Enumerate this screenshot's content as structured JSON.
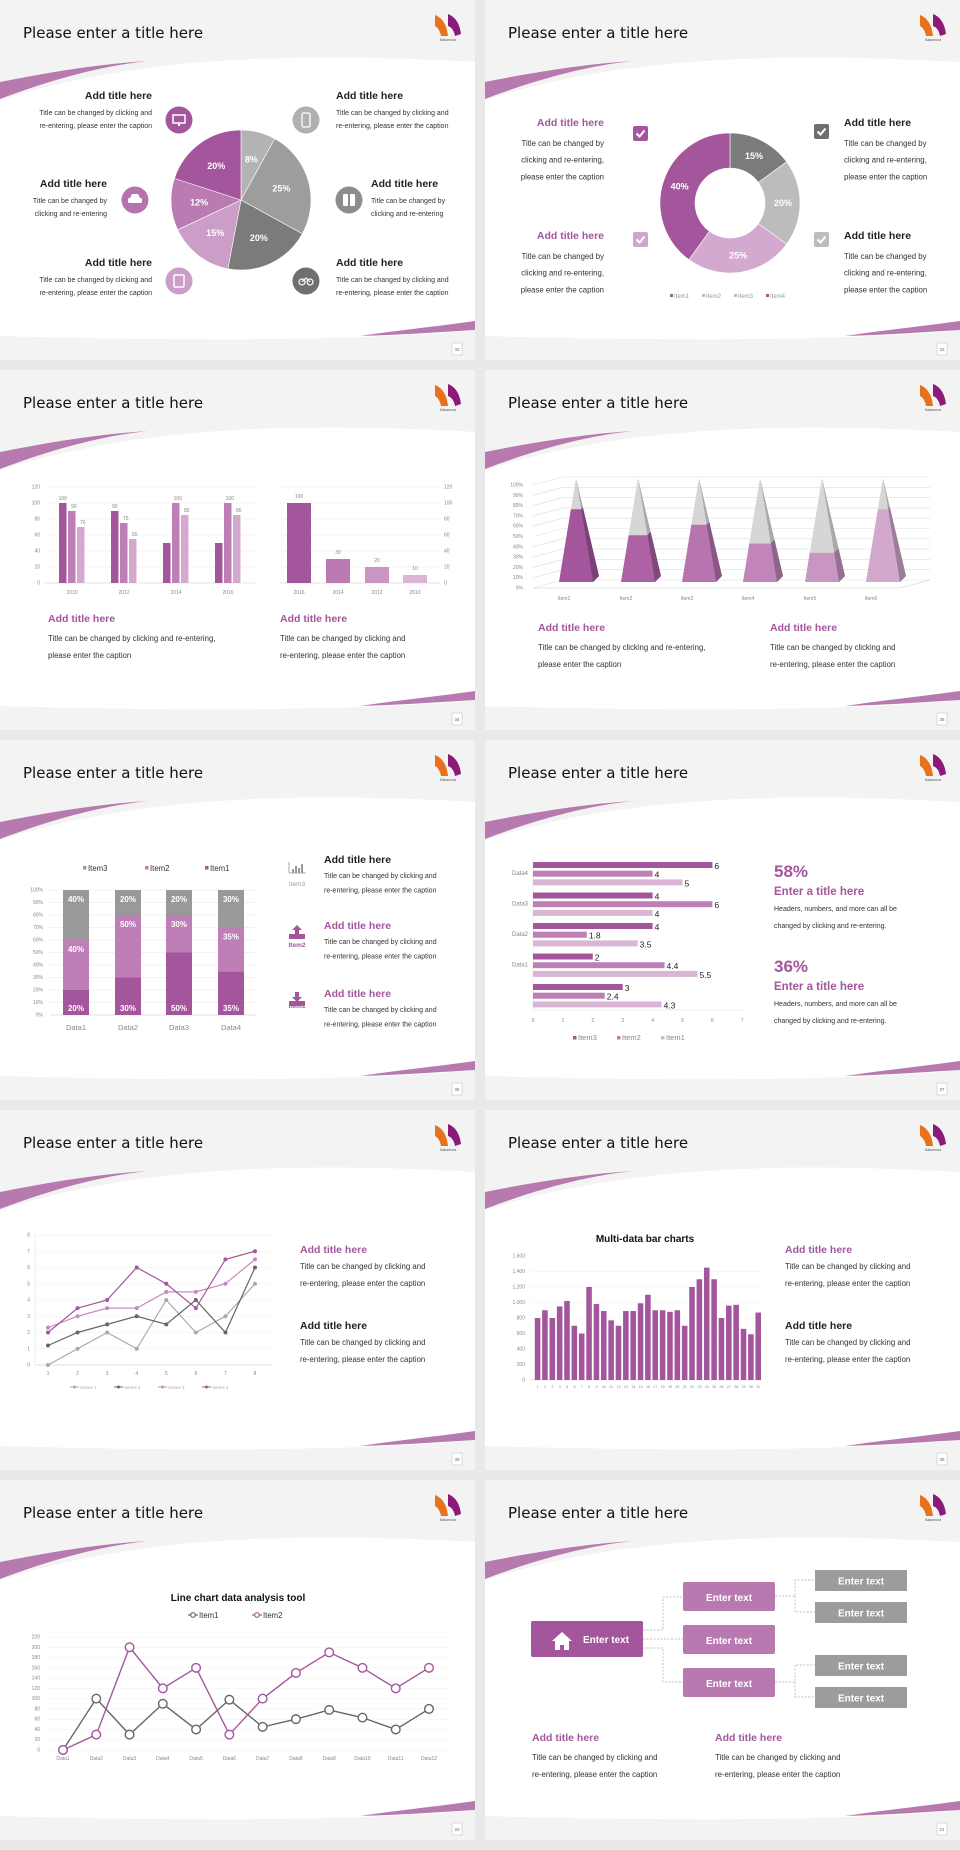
{
  "colors": {
    "accent": "#a4569c",
    "accent_mid": "#bd7fb6",
    "accent_light": "#d4a9cf",
    "gray_dark": "#777777",
    "gray": "#9d9d9d",
    "gray_light": "#b8b8b8",
    "logo_orange": "#e8711c",
    "logo_purple": "#8b1a78"
  },
  "logo_text": "Nakamura",
  "slides": [
    {
      "title": "Please enter a title here",
      "page": "32",
      "icons": [
        "monitor-icon",
        "smartphone-icon",
        "car-icon",
        "binoculars-icon",
        "book-icon",
        "bicycle-icon"
      ],
      "blocks": [
        {
          "title": "Add title here",
          "lines": [
            "Title can be changed by clicking and",
            "re-entering, please enter the caption"
          ]
        },
        {
          "title": "Add title here",
          "lines": [
            "Title can be changed by",
            "clicking and re-entering"
          ]
        },
        {
          "title": "Add title here",
          "lines": [
            "Title can be changed by clicking and",
            "re-entering, please enter the caption"
          ]
        },
        {
          "title": "Add title here",
          "lines": [
            "Title can be changed by clicking and",
            "re-entering, please enter the caption"
          ]
        },
        {
          "title": "Add title here",
          "lines": [
            "Title can be changed by",
            "clicking and re-entering"
          ]
        },
        {
          "title": "Add title here",
          "lines": [
            "Title can be changed by clicking and",
            "re-entering, please enter the caption"
          ]
        }
      ]
    },
    {
      "title": "Please enter a title here",
      "page": "33",
      "icons": [
        "checkbox-checked-icon",
        "checkbox-checked-icon",
        "checkbox-checked-icon",
        "checkbox-checked-icon"
      ],
      "blocks": [
        {
          "title": "Add title here",
          "lines": [
            "Title can be changed by",
            "clicking and re-entering,",
            "please enter the caption"
          ]
        },
        {
          "title": "Add title here",
          "lines": [
            "Title can be changed by",
            "clicking and re-entering,",
            "please enter the caption"
          ]
        },
        {
          "title": "Add title here",
          "lines": [
            "Title can be changed by",
            "clicking and re-entering,",
            "please enter the caption"
          ]
        },
        {
          "title": "Add title here",
          "lines": [
            "Title can be changed by",
            "clicking and re-entering,",
            "please enter the caption"
          ]
        }
      ]
    },
    {
      "title": "Please enter a title here",
      "page": "34",
      "blocks": [
        {
          "title": "Add title here",
          "lines": [
            "Title can be changed by clicking and re-entering,",
            "please enter the caption"
          ]
        },
        {
          "title": "Add title here",
          "lines": [
            "Title can be changed by clicking and",
            "re-entering, please enter the caption"
          ]
        }
      ]
    },
    {
      "title": "Please enter a title here",
      "page": "35",
      "blocks": [
        {
          "title": "Add title here",
          "lines": [
            "Title can be changed by clicking and re-entering,",
            "please enter the caption"
          ]
        },
        {
          "title": "Add title here",
          "lines": [
            "Title can be changed by clicking and",
            "re-entering, please enter the caption"
          ]
        }
      ]
    },
    {
      "title": "Please enter a title here",
      "page": "36",
      "icon_labels": [
        "Item3",
        "Item2",
        "Item1"
      ],
      "icons": [
        "bar-chart-icon",
        "upload-icon",
        "download-icon"
      ],
      "blocks": [
        {
          "title": "Add title here",
          "lines": [
            "Title can be changed by clicking and",
            "re-entering, please enter the caption"
          ]
        },
        {
          "title": "Add title here",
          "lines": [
            "Title can be changed by clicking and",
            "re-entering, please enter the caption"
          ]
        },
        {
          "title": "Add title here",
          "lines": [
            "Title can be changed by clicking and",
            "re-entering, please enter the caption"
          ]
        }
      ]
    },
    {
      "title": "Please enter a title here",
      "page": "37",
      "stats": [
        {
          "value": "58%",
          "title": "Enter a title here",
          "lines": [
            "Headers, numbers, and more can all be",
            "changed by clicking and re-entering."
          ]
        },
        {
          "value": "36%",
          "title": "Enter a title here",
          "lines": [
            "Headers, numbers, and more can all be",
            "changed by clicking and re-entering."
          ]
        }
      ]
    },
    {
      "title": "Please enter a title here",
      "page": "38",
      "blocks": [
        {
          "title": "Add title here",
          "lines": [
            "Title can be changed by clicking and",
            "re-entering, please enter the caption"
          ]
        },
        {
          "title": "Add title here",
          "lines": [
            "Title can be changed by clicking and",
            "re-entering, please enter the caption"
          ]
        }
      ]
    },
    {
      "title": "Please enter a title here",
      "page": "39",
      "blocks": [
        {
          "title": "Add title here",
          "lines": [
            "Title can be changed by clicking and",
            "re-entering, please enter the caption"
          ]
        },
        {
          "title": "Add title here",
          "lines": [
            "Title can be changed by clicking and",
            "re-entering, please enter the caption"
          ]
        }
      ]
    },
    {
      "title": "Please enter a title here",
      "page": "20"
    },
    {
      "title": "Please enter a title here",
      "page": "21",
      "tree": {
        "root": "Enter text",
        "root_icon": "home-icon",
        "level1": [
          "Enter text",
          "Enter text",
          "Enter text"
        ],
        "level2": [
          "Enter text",
          "Enter text",
          "Enter text",
          "Enter text"
        ]
      },
      "blocks": [
        {
          "title": "Add title here",
          "lines": [
            "Title can be changed by clicking and",
            "re-entering, please enter the caption"
          ]
        },
        {
          "title": "Add title here",
          "lines": [
            "Title can be changed by clicking and",
            "re-entering, please enter the caption"
          ]
        }
      ]
    }
  ],
  "chart_data": [
    {
      "type": "pie",
      "values": [
        8,
        25,
        20,
        15,
        12,
        20
      ],
      "labels": [
        "8%",
        "25%",
        "20%",
        "15%",
        "12%",
        "20%"
      ],
      "colors": [
        "#b3b3b3",
        "#9d9d9d",
        "#7b7b7b",
        "#cc9dc6",
        "#b97bb1",
        "#a4569c"
      ]
    },
    {
      "type": "pie",
      "donut": true,
      "categories": [
        "Item1",
        "Item2",
        "Item3",
        "Item4"
      ],
      "values": [
        15,
        20,
        25,
        40
      ],
      "labels": [
        "15%",
        "20%",
        "25%",
        "40%"
      ],
      "colors": [
        "#7b7b7b",
        "#bcbcbc",
        "#d4a9cf",
        "#a4569c"
      ],
      "legend": "bottom"
    },
    {
      "type": "bar",
      "categories": [
        "2010",
        "2012",
        "2014",
        "2016"
      ],
      "series": [
        {
          "values": [
            100,
            90,
            50,
            50
          ],
          "labels": [
            "100",
            "90",
            "",
            ""
          ]
        },
        {
          "values": [
            90,
            75,
            100,
            100
          ],
          "labels": [
            "90",
            "75",
            "100",
            "100"
          ]
        },
        {
          "values": [
            70,
            55,
            85,
            85
          ],
          "labels": [
            "70",
            "55",
            "85",
            "85"
          ]
        }
      ],
      "ylim": [
        0,
        120
      ],
      "yticks": [
        "0",
        "20",
        "40",
        "60",
        "80",
        "100",
        "120"
      ],
      "grid": true,
      "colors": [
        "#a4569c",
        "#bd7fb6",
        "#d4a9cf"
      ]
    },
    {
      "type": "bar",
      "categories": [
        "2016",
        "2014",
        "2012",
        "2010"
      ],
      "values": [
        100,
        30,
        20,
        10
      ],
      "labels": [
        "100",
        "30",
        "20",
        "10"
      ],
      "ylim": [
        0,
        120
      ],
      "yticks": [
        "0",
        "20",
        "40",
        "60",
        "80",
        "100",
        "120"
      ],
      "y_axis": "right",
      "grid": true,
      "colors": [
        "#a4569c",
        "#b97bb1",
        "#c996c3",
        "#d9b7d4"
      ]
    },
    {
      "type": "bar",
      "style": "3d-pyramid",
      "categories": [
        "Item1",
        "Item2",
        "Item3",
        "Item4",
        "Item5",
        "Item6"
      ],
      "values": [
        70,
        45,
        55,
        37,
        28,
        70
      ],
      "ylim": [
        0,
        100
      ],
      "yticks": [
        "0%",
        "10%",
        "20%",
        "30%",
        "40%",
        "50%",
        "60%",
        "70%",
        "80%",
        "90%",
        "100%"
      ],
      "grid": true,
      "colors": [
        "#a4569c",
        "#ad62a5",
        "#b874b0",
        "#c185ba",
        "#c996c3",
        "#d2a8cd"
      ]
    },
    {
      "type": "bar",
      "stacked": true,
      "categories": [
        "Data1",
        "Data2",
        "Data3",
        "Data4"
      ],
      "series": [
        {
          "name": "Item1",
          "values": [
            20,
            30,
            50,
            35
          ],
          "labels": [
            "20%",
            "30%",
            "50%",
            "35%"
          ]
        },
        {
          "name": "Item2",
          "values": [
            40,
            50,
            30,
            35
          ],
          "labels": [
            "40%",
            "50%",
            "30%",
            "35%"
          ]
        },
        {
          "name": "Item3",
          "values": [
            40,
            20,
            20,
            30
          ],
          "labels": [
            "40%",
            "20%",
            "20%",
            "30%"
          ]
        }
      ],
      "legend_order": [
        "Item3",
        "Item2",
        "Item1"
      ],
      "ylim": [
        0,
        100
      ],
      "yticks": [
        "0%",
        "10%",
        "20%",
        "30%",
        "40%",
        "50%",
        "60%",
        "70%",
        "80%",
        "90%",
        "100%"
      ],
      "legend": "top",
      "colors": [
        "#a4569c",
        "#bd7fb6",
        "#999999"
      ]
    },
    {
      "type": "bar",
      "orientation": "horizontal",
      "categories": [
        "Data4",
        "Data3",
        "Data2",
        "Data1",
        ""
      ],
      "series": [
        {
          "name": "Item3",
          "values": [
            6,
            4,
            4,
            2,
            3
          ]
        },
        {
          "name": "Item2",
          "values": [
            4,
            6,
            1.8,
            4.4,
            2.4
          ]
        },
        {
          "name": "Item1",
          "values": [
            5,
            4,
            3.5,
            5.5,
            4.3
          ]
        }
      ],
      "labels": [
        [
          "6",
          "4",
          "4",
          "2",
          "3"
        ],
        [
          "4",
          "6",
          "1.8",
          "4.4",
          "2.4"
        ],
        [
          "5",
          "4",
          "3.5",
          "5.5",
          "4.3"
        ]
      ],
      "xlim": [
        0,
        7
      ],
      "xticks": [
        "0",
        "1",
        "2",
        "3",
        "4",
        "5",
        "6",
        "7"
      ],
      "legend": "bottom",
      "colors": [
        "#a4569c",
        "#bd7fb6",
        "#d9b7d4"
      ]
    },
    {
      "type": "line",
      "x": [
        "1",
        "2",
        "3",
        "4",
        "5",
        "6",
        "7",
        "8"
      ],
      "series": [
        {
          "name": "Series 1",
          "values": [
            0,
            1,
            2,
            1,
            4,
            2,
            3,
            5
          ]
        },
        {
          "name": "Series 2",
          "values": [
            1.2,
            2,
            2.5,
            3,
            2.5,
            4,
            2,
            6
          ]
        },
        {
          "name": "Series 3",
          "values": [
            2.3,
            3,
            3.5,
            3.5,
            4.5,
            4.5,
            5,
            6.5
          ]
        },
        {
          "name": "Series 4",
          "values": [
            2,
            3.5,
            4,
            6,
            5,
            3.5,
            6.5,
            7
          ]
        }
      ],
      "ylim": [
        0,
        8
      ],
      "yticks": [
        "0",
        "1",
        "2",
        "3",
        "4",
        "5",
        "6",
        "7",
        "8"
      ],
      "grid": true,
      "legend": "bottom",
      "colors": [
        "#aaaaaa",
        "#666666",
        "#c58bbf",
        "#a4569c"
      ]
    },
    {
      "type": "bar",
      "title": "Multi-data bar charts",
      "categories": [
        "1",
        "2",
        "3",
        "4",
        "5",
        "6",
        "7",
        "8",
        "9",
        "10",
        "11",
        "12",
        "13",
        "14",
        "15",
        "16",
        "17",
        "18",
        "19",
        "20",
        "21",
        "22",
        "23",
        "24",
        "25",
        "26",
        "27",
        "28",
        "29",
        "30",
        "31"
      ],
      "values": [
        800,
        900,
        800,
        950,
        1020,
        700,
        600,
        1200,
        980,
        890,
        770,
        700,
        890,
        890,
        990,
        1100,
        900,
        900,
        880,
        900,
        700,
        1200,
        1300,
        1450,
        1300,
        800,
        960,
        970,
        660,
        590,
        870
      ],
      "ylim": [
        0,
        1600
      ],
      "yticks": [
        "0",
        "200",
        "400",
        "600",
        "800",
        "1,000",
        "1,200",
        "1,400",
        "1,600"
      ],
      "grid": true,
      "colors": [
        "#a4569c"
      ]
    },
    {
      "type": "line",
      "title": "Line chart data analysis tool",
      "x": [
        "Data1",
        "Data2",
        "Data3",
        "Data4",
        "Data5",
        "Data6",
        "Data7",
        "Data8",
        "Data9",
        "Data10",
        "Data11",
        "Data12"
      ],
      "series": [
        {
          "name": "Item1",
          "values": [
            0,
            100,
            30,
            90,
            40,
            98,
            45,
            60,
            78,
            63,
            40,
            80
          ]
        },
        {
          "name": "Item2",
          "values": [
            0,
            30,
            200,
            120,
            160,
            30,
            100,
            150,
            190,
            160,
            120,
            160
          ]
        }
      ],
      "ylim": [
        0,
        220
      ],
      "yticks": [
        "0",
        "20",
        "40",
        "60",
        "80",
        "100",
        "120",
        "140",
        "160",
        "180",
        "200",
        "220"
      ],
      "grid": true,
      "legend": "top",
      "colors": [
        "#666666",
        "#a4569c"
      ]
    }
  ]
}
